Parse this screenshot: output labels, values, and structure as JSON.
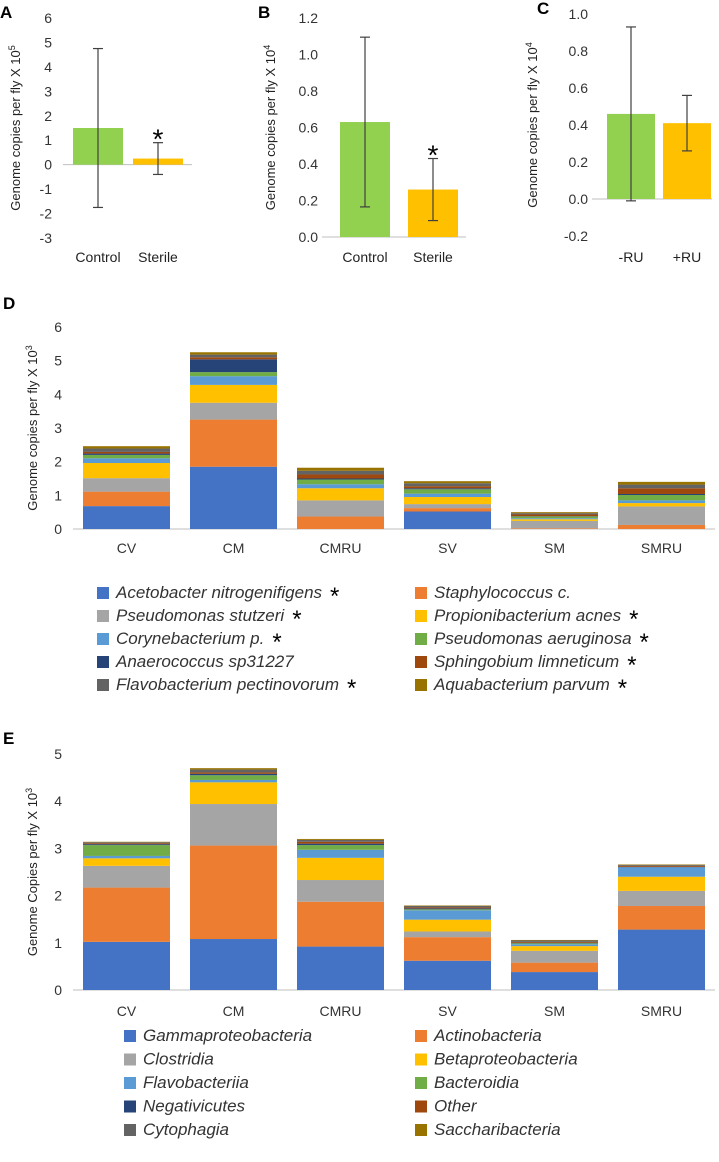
{
  "colors": {
    "green": "#92D050",
    "yellow": "#FFC000",
    "axis": "#BFBFBF",
    "error": "#404040"
  },
  "chart_data": [
    {
      "id": "A",
      "panel_label": "A",
      "type": "bar",
      "categories": [
        "Control",
        "Sterile"
      ],
      "values": [
        1.5,
        0.25
      ],
      "error_low": [
        -1.75,
        -0.4
      ],
      "error_high": [
        4.75,
        0.9
      ],
      "bar_colors": [
        "#92D050",
        "#FFC000"
      ],
      "ylabel": "Genome copies per fly X 10",
      "ylabel_exp": "5",
      "ylim": [
        -3,
        6
      ],
      "yticks": [
        "-3",
        "-2",
        "-1",
        "0",
        "1",
        "2",
        "3",
        "4",
        "5",
        "6"
      ],
      "significance": [
        "",
        "*"
      ]
    },
    {
      "id": "B",
      "panel_label": "B",
      "type": "bar",
      "categories": [
        "Control",
        "Sterile"
      ],
      "values": [
        0.63,
        0.26
      ],
      "error_low": [
        0.165,
        0.09
      ],
      "error_high": [
        1.095,
        0.43
      ],
      "bar_colors": [
        "#92D050",
        "#FFC000"
      ],
      "ylabel": "Genome copies per fly X 10",
      "ylabel_exp": "4",
      "ylim": [
        0,
        1.2
      ],
      "yticks": [
        "0.0",
        "0.2",
        "0.4",
        "0.6",
        "0.8",
        "1.0",
        "1.2"
      ],
      "significance": [
        "",
        "*"
      ]
    },
    {
      "id": "C",
      "panel_label": "C",
      "type": "bar",
      "categories": [
        "-RU",
        "+RU"
      ],
      "values": [
        0.46,
        0.41
      ],
      "error_low": [
        -0.01,
        0.26
      ],
      "error_high": [
        0.93,
        0.56
      ],
      "bar_colors": [
        "#92D050",
        "#FFC000"
      ],
      "ylabel": "Genome copies per fly X 10",
      "ylabel_exp": "4",
      "ylim": [
        -0.2,
        1.0
      ],
      "yticks": [
        "-0.2",
        "0.0",
        "0.2",
        "0.4",
        "0.6",
        "0.8",
        "1.0"
      ],
      "significance": [
        "",
        ""
      ]
    },
    {
      "id": "D",
      "panel_label": "D",
      "type": "bar",
      "stacked": true,
      "categories": [
        "CV",
        "CM",
        "CMRU",
        "SV",
        "SM",
        "SMRU"
      ],
      "ylabel": "Genome copies per fly X 10",
      "ylabel_exp": "3",
      "ylim": [
        0,
        6
      ],
      "yticks": [
        "0",
        "1",
        "2",
        "3",
        "4",
        "5",
        "6"
      ],
      "series": [
        {
          "name": "Acetobacter nitrogenifigens",
          "star": true,
          "color": "#4472C4",
          "values": [
            0.68,
            1.85,
            0.0,
            0.52,
            0.0,
            0.0
          ]
        },
        {
          "name": "Staphylococcus c.",
          "star": false,
          "color": "#ED7D31",
          "values": [
            0.43,
            1.4,
            0.37,
            0.1,
            0.02,
            0.12
          ]
        },
        {
          "name": "Pseudomonas stutzeri",
          "star": true,
          "color": "#A5A5A5",
          "values": [
            0.4,
            0.5,
            0.48,
            0.12,
            0.22,
            0.55
          ]
        },
        {
          "name": "Propionibacterium acnes",
          "star": true,
          "color": "#FFC000",
          "values": [
            0.45,
            0.53,
            0.36,
            0.21,
            0.05,
            0.1
          ]
        },
        {
          "name": "Corynebacterium p.",
          "star": true,
          "color": "#5B9BD5",
          "values": [
            0.14,
            0.26,
            0.12,
            0.1,
            0.03,
            0.08
          ]
        },
        {
          "name": "Pseudomonas aeruginosa",
          "star": true,
          "color": "#70AD47",
          "values": [
            0.1,
            0.12,
            0.14,
            0.13,
            0.05,
            0.16
          ]
        },
        {
          "name": "Anaerococcus sp31227",
          "star": false,
          "color": "#264478",
          "values": [
            0.04,
            0.38,
            0.03,
            0.03,
            0.01,
            0.03
          ]
        },
        {
          "name": "Sphingobium limneticum",
          "star": true,
          "color": "#9E480E",
          "values": [
            0.05,
            0.06,
            0.12,
            0.06,
            0.05,
            0.17
          ]
        },
        {
          "name": "Flavobacterium pectinovorum",
          "star": true,
          "color": "#636363",
          "values": [
            0.1,
            0.08,
            0.11,
            0.09,
            0.04,
            0.11
          ]
        },
        {
          "name": "Aquabacterium parvum",
          "star": true,
          "color": "#997300",
          "values": [
            0.07,
            0.07,
            0.09,
            0.06,
            0.03,
            0.08
          ]
        }
      ]
    },
    {
      "id": "E",
      "panel_label": "E",
      "type": "bar",
      "stacked": true,
      "categories": [
        "CV",
        "CM",
        "CMRU",
        "SV",
        "SM",
        "SMRU"
      ],
      "ylabel": "Genome Copies per fly X 10",
      "ylabel_exp": "3",
      "ylim": [
        0,
        5
      ],
      "yticks": [
        "0",
        "1",
        "2",
        "3",
        "4",
        "5"
      ],
      "series": [
        {
          "name": "Gammaproteobacteria",
          "color": "#4472C4",
          "values": [
            1.02,
            1.08,
            0.92,
            0.62,
            0.38,
            1.28
          ]
        },
        {
          "name": "Actinobacteria",
          "color": "#ED7D31",
          "values": [
            1.15,
            1.98,
            0.95,
            0.5,
            0.2,
            0.5
          ]
        },
        {
          "name": "Clostridia",
          "color": "#A5A5A5",
          "values": [
            0.46,
            0.88,
            0.46,
            0.12,
            0.25,
            0.32
          ]
        },
        {
          "name": "Betaproteobacteria",
          "color": "#FFC000",
          "values": [
            0.16,
            0.46,
            0.47,
            0.25,
            0.1,
            0.3
          ]
        },
        {
          "name": "Flavobacteriia",
          "color": "#5B9BD5",
          "values": [
            0.05,
            0.05,
            0.17,
            0.2,
            0.04,
            0.2
          ]
        },
        {
          "name": "Bacteroidia",
          "color": "#70AD47",
          "values": [
            0.23,
            0.1,
            0.1,
            0.02,
            0.02,
            0.0
          ]
        },
        {
          "name": "Negativicutes",
          "color": "#264478",
          "values": [
            0.02,
            0.03,
            0.03,
            0.02,
            0.01,
            0.01
          ]
        },
        {
          "name": "Other",
          "color": "#9E480E",
          "values": [
            0.02,
            0.03,
            0.04,
            0.02,
            0.02,
            0.02
          ]
        },
        {
          "name": "Cytophagia",
          "color": "#636363",
          "values": [
            0.02,
            0.06,
            0.04,
            0.03,
            0.03,
            0.02
          ]
        },
        {
          "name": "Saccharibacteria",
          "color": "#997300",
          "values": [
            0.01,
            0.03,
            0.02,
            0.01,
            0.01,
            0.01
          ]
        }
      ]
    }
  ]
}
